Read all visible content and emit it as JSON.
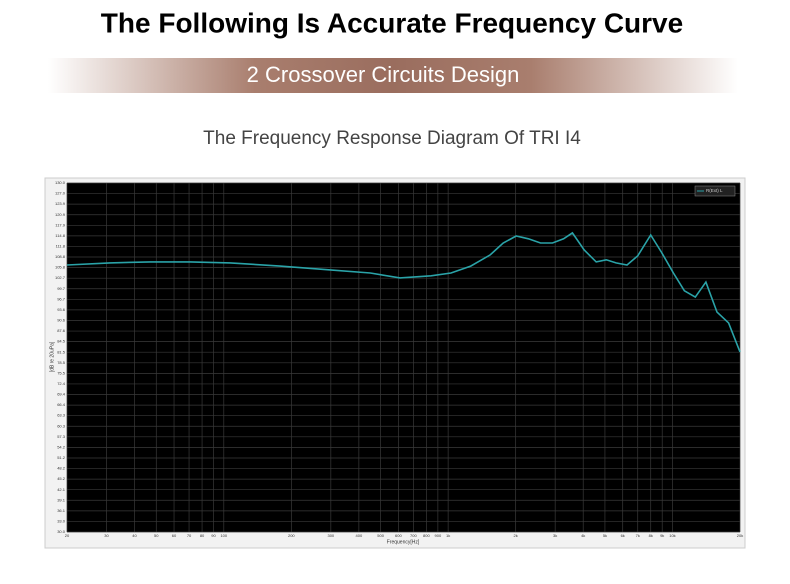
{
  "header": {
    "title": "The Following Is Accurate Frequency Curve",
    "banner": "2 Crossover Circuits Design"
  },
  "chart_data": {
    "type": "line",
    "title": "The Frequency Response Diagram Of TRI I4",
    "x_label": "Frequency[Hz]",
    "y_label": "[dB re 20uPa]",
    "log_x": true,
    "grid": true,
    "legend": "upper right",
    "x": [
      20,
      31,
      47,
      71,
      107,
      178,
      298,
      450,
      610,
      840,
      1030,
      1260,
      1540,
      1760,
      2010,
      2280,
      2580,
      2920,
      3270,
      3580,
      4040,
      4570,
      5070,
      5600,
      6270,
      7000,
      8000,
      8930,
      10100,
      11300,
      12640,
      14100,
      15800,
      17800,
      20000
    ],
    "series": [
      {
        "name": "R(Ext) L",
        "color": "#2aa3a8",
        "values": [
          106.5,
          107.1,
          107.4,
          107.4,
          107.1,
          106.2,
          105.1,
          104.2,
          102.8,
          103.4,
          104.2,
          106.2,
          109.4,
          112.8,
          114.8,
          114.0,
          112.8,
          112.8,
          114.0,
          115.7,
          110.8,
          107.4,
          108.0,
          107.1,
          106.5,
          109.1,
          115.1,
          110.2,
          104.2,
          99.1,
          97.3,
          101.6,
          93.0,
          89.9,
          81.6
        ]
      }
    ],
    "xlim": [
      20,
      20000
    ],
    "xticks": [
      20,
      30,
      40,
      50,
      60,
      70,
      80,
      90,
      100,
      200,
      300,
      400,
      500,
      600,
      700,
      800,
      900,
      {
        "value": 1000,
        "label": "1k"
      },
      {
        "value": 2000,
        "label": "2k"
      },
      {
        "value": 3000,
        "label": "3k"
      },
      {
        "value": 4000,
        "label": "4k"
      },
      {
        "value": 5000,
        "label": "5k"
      },
      {
        "value": 6000,
        "label": "6k"
      },
      {
        "value": 7000,
        "label": "7k"
      },
      {
        "value": 8000,
        "label": "8k"
      },
      {
        "value": 9000,
        "label": "9k"
      },
      {
        "value": 10000,
        "label": "10k"
      },
      {
        "value": 20000,
        "label": "20k"
      }
    ],
    "ylim": [
      30,
      130
    ],
    "yticks": [
      {
        "value": 130,
        "label": "130.0"
      },
      {
        "value": 126.97,
        "label": "127.0"
      },
      {
        "value": 123.94,
        "label": "123.9"
      },
      {
        "value": 120.91,
        "label": "120.9"
      },
      {
        "value": 117.88,
        "label": "117.9"
      },
      {
        "value": 114.85,
        "label": "114.8"
      },
      {
        "value": 111.82,
        "label": "111.8"
      },
      {
        "value": 108.79,
        "label": "108.8"
      },
      {
        "value": 105.76,
        "label": "105.8"
      },
      {
        "value": 102.73,
        "label": "102.7"
      },
      {
        "value": 99.7,
        "label": "99.7"
      },
      {
        "value": 96.67,
        "label": "96.7"
      },
      {
        "value": 93.64,
        "label": "93.6"
      },
      {
        "value": 90.61,
        "label": "90.6"
      },
      {
        "value": 87.58,
        "label": "87.6"
      },
      {
        "value": 84.55,
        "label": "84.5"
      },
      {
        "value": 81.52,
        "label": "81.5"
      },
      {
        "value": 78.48,
        "label": "78.5"
      },
      {
        "value": 75.45,
        "label": "75.5"
      },
      {
        "value": 72.42,
        "label": "72.4"
      },
      {
        "value": 69.39,
        "label": "69.4"
      },
      {
        "value": 66.36,
        "label": "66.4"
      },
      {
        "value": 63.33,
        "label": "63.3"
      },
      {
        "value": 60.3,
        "label": "60.3"
      },
      {
        "value": 57.27,
        "label": "57.3"
      },
      {
        "value": 54.24,
        "label": "54.2"
      },
      {
        "value": 51.21,
        "label": "51.2"
      },
      {
        "value": 48.18,
        "label": "48.2"
      },
      {
        "value": 45.15,
        "label": "45.2"
      },
      {
        "value": 42.12,
        "label": "42.1"
      },
      {
        "value": 39.09,
        "label": "39.1"
      },
      {
        "value": 36.06,
        "label": "36.1"
      },
      {
        "value": 33.03,
        "label": "33.0"
      },
      {
        "value": 30,
        "label": "30.0"
      }
    ]
  }
}
